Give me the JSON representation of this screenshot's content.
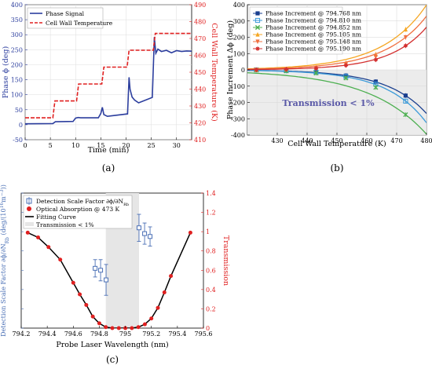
{
  "panels": {
    "a": {
      "label": "(a)"
    },
    "b": {
      "label": "(b)"
    },
    "c": {
      "label": "(c)"
    }
  },
  "chart_data": [
    {
      "id": "a",
      "type": "line",
      "xlabel": "Time (min)",
      "ylabel": "Phase ϕ (deg)",
      "y2label": "Cell Wall Temperature (K)",
      "xlim": [
        0,
        33
      ],
      "ylim": [
        -50,
        400
      ],
      "y2lim": [
        410,
        490
      ],
      "xticks": [
        0,
        5,
        10,
        15,
        20,
        25,
        30
      ],
      "yticks": [
        -50,
        0,
        50,
        100,
        150,
        200,
        250,
        300,
        350,
        400
      ],
      "y2ticks": [
        410,
        420,
        430,
        440,
        450,
        460,
        470,
        480,
        490
      ],
      "legend_position": "top-left",
      "series": [
        {
          "name": "Phase Signal",
          "axis": "left",
          "color": "#2c3e9e",
          "x": [
            0,
            5.5,
            6,
            9.5,
            10,
            10.5,
            11,
            14.5,
            15,
            15.3,
            15.6,
            16.3,
            20.3,
            20.6,
            20.8,
            21.2,
            21.7,
            22.5,
            25.2,
            25.6,
            25.9,
            26.3,
            27,
            28,
            29,
            30,
            31,
            32,
            33
          ],
          "y": [
            3,
            4,
            10,
            11,
            22,
            24,
            23,
            23,
            38,
            58,
            34,
            28,
            36,
            158,
            118,
            92,
            82,
            73,
            91,
            292,
            238,
            252,
            244,
            248,
            240,
            247,
            244,
            246,
            245
          ]
        },
        {
          "name": "Cell Wall Temperature",
          "axis": "right",
          "color": "#e02020",
          "style": "dashed",
          "x": [
            0,
            5.5,
            5.9,
            10.2,
            10.6,
            15.2,
            15.6,
            20.2,
            20.6,
            25.4,
            25.8,
            33
          ],
          "y": [
            423,
            423,
            433,
            433,
            443,
            443,
            453,
            453,
            463,
            463,
            473,
            473
          ]
        }
      ]
    },
    {
      "id": "b",
      "type": "line",
      "xlabel": "Cell Wall Temperature (K)",
      "ylabel": "Phase Increment Δϕ (deg)",
      "xlim": [
        420,
        480
      ],
      "ylim": [
        -400,
        400
      ],
      "xticks": [
        430,
        440,
        450,
        460,
        470,
        480
      ],
      "yticks": [
        -400,
        -300,
        -200,
        -100,
        0,
        100,
        200,
        300,
        400
      ],
      "annotation": "Transmission < 1%",
      "legend_position": "top-left",
      "series": [
        {
          "name": "Phase Increment @ 794.768 nm",
          "color": "#1a3f8f",
          "marker": "square",
          "x": [
            423,
            433,
            443,
            453,
            463,
            473
          ],
          "y": [
            0,
            -4,
            -12,
            -35,
            -72,
            -158
          ],
          "curve_end": -268
        },
        {
          "name": "Phase Increment @ 794.810 nm",
          "color": "#3b9ad9",
          "marker": "square-open",
          "x": [
            423,
            433,
            443,
            453,
            463,
            473
          ],
          "y": [
            0,
            -4,
            -15,
            -40,
            -88,
            -192
          ],
          "curve_end": -325
        },
        {
          "name": "Phase Increment @ 794.852 nm",
          "color": "#4caf50",
          "marker": "x",
          "x": [
            423,
            433,
            443,
            453,
            463,
            473
          ],
          "y": [
            0,
            -7,
            -20,
            -50,
            -108,
            -275
          ],
          "curve_end": -395
        },
        {
          "name": "Phase Increment @ 795.105 nm",
          "color": "#f5a623",
          "marker": "triangle",
          "x": [
            423,
            433,
            443,
            453,
            463,
            473
          ],
          "y": [
            0,
            5,
            14,
            42,
            95,
            248
          ],
          "curve_end": 398
        },
        {
          "name": "Phase Increment @ 795.148 nm",
          "color": "#f07040",
          "marker": "triangle-down",
          "x": [
            423,
            433,
            443,
            453,
            463,
            473
          ],
          "y": [
            0,
            4,
            11,
            33,
            80,
            200
          ],
          "curve_end": 330
        },
        {
          "name": "Phase Increment @ 795.190 nm",
          "color": "#d32f2f",
          "marker": "star",
          "x": [
            423,
            433,
            443,
            453,
            463,
            473
          ],
          "y": [
            0,
            3,
            9,
            27,
            62,
            148
          ],
          "curve_end": 262
        }
      ]
    },
    {
      "id": "c",
      "type": "scatter",
      "xlabel": "Probe Laser Wavelength (nm)",
      "ylabel": "Detection Scale Factor ∂ϕ/∂N_Rb (deg/(10¹⁶m⁻³))",
      "ylabel_main": "Detection Scale Factor ∂ϕ/∂N",
      "ylabel_sub": "Rb",
      "ylabel_tail": " (deg/(10",
      "ylabel_sup": "16",
      "ylabel_unit": "m",
      "ylabel_sup2": "−3",
      "ylabel_close": "))",
      "y2label": "Transmission",
      "xlim": [
        794.2,
        795.6
      ],
      "ylim": [
        -2,
        12
      ],
      "y2lim": [
        0,
        1.4
      ],
      "xticks": [
        "794.2",
        "794.4",
        "794.6",
        "794.8",
        "795",
        "795.2",
        "795.4",
        "795.6"
      ],
      "yticks": [
        "",
        "",
        "",
        "",
        "",
        "",
        "",
        ""
      ],
      "y2ticks": [
        "0",
        "0.2",
        "0.4",
        "0.6",
        "0.8",
        "1",
        "1.2",
        "1.4"
      ],
      "legend_position": "top-left",
      "shaded_region": {
        "x": [
          794.85,
          795.105
        ],
        "label": "Transmission < 1%"
      },
      "series": [
        {
          "name": "Detection Scale Factor ∂ϕ/∂N_Rb",
          "legend_main": "Detection Scale Factor ∂ϕ/∂N",
          "legend_sub": "Rb",
          "axis": "left",
          "color": "#4a6fb5",
          "marker": "square-open",
          "x": [
            794.768,
            794.81,
            794.852,
            795.105,
            795.148,
            795.19
          ],
          "y": [
            4.2,
            4.0,
            3.0,
            8.4,
            7.8,
            7.5
          ],
          "err": [
            0.9,
            1.1,
            1.6,
            1.4,
            1.1,
            1.0
          ]
        },
        {
          "name": "Optical Absorption @ 473 K",
          "axis": "right",
          "color": "#e02020",
          "marker": "dot",
          "x": [
            794.25,
            794.33,
            794.41,
            794.5,
            794.6,
            794.65,
            794.7,
            794.75,
            794.8,
            794.85,
            794.9,
            794.95,
            795.0,
            795.05,
            795.1,
            795.15,
            795.2,
            795.25,
            795.3,
            795.35,
            795.5
          ],
          "y": [
            0.99,
            0.94,
            0.84,
            0.71,
            0.47,
            0.35,
            0.24,
            0.12,
            0.05,
            0.01,
            0.0,
            0.0,
            0.0,
            0.0,
            0.01,
            0.04,
            0.1,
            0.21,
            0.37,
            0.54,
            0.99
          ]
        },
        {
          "name": "Fitting Curve",
          "axis": "right",
          "color": "#000000",
          "style": "solid"
        }
      ]
    }
  ]
}
